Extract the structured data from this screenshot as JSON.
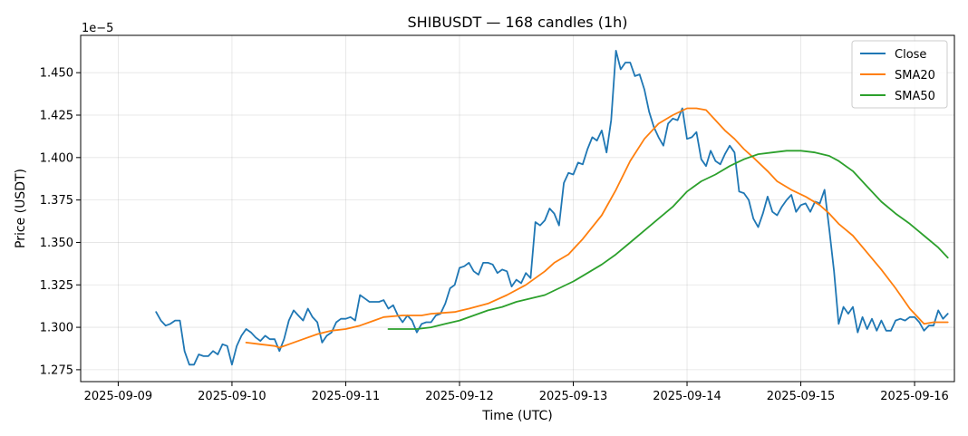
{
  "chart_data": {
    "type": "line",
    "title": "SHIBUSDT — 168 candles (1h)",
    "xlabel": "Time (UTC)",
    "ylabel": "Price (USDT)",
    "y_offset_label": "1e−5",
    "x_unit": "days since 2025-09-09 00:00 UTC",
    "xlim": [
      -0.33,
      7.35
    ],
    "ylim": [
      1.268,
      1.472
    ],
    "x_ticks": [
      {
        "x": 0,
        "label": "2025-09-09"
      },
      {
        "x": 1,
        "label": "2025-09-10"
      },
      {
        "x": 2,
        "label": "2025-09-11"
      },
      {
        "x": 3,
        "label": "2025-09-12"
      },
      {
        "x": 4,
        "label": "2025-09-13"
      },
      {
        "x": 5,
        "label": "2025-09-14"
      },
      {
        "x": 6,
        "label": "2025-09-15"
      },
      {
        "x": 7,
        "label": "2025-09-16"
      }
    ],
    "y_ticks": [
      {
        "y": 1.275,
        "label": "1.275"
      },
      {
        "y": 1.3,
        "label": "1.300"
      },
      {
        "y": 1.325,
        "label": "1.325"
      },
      {
        "y": 1.35,
        "label": "1.350"
      },
      {
        "y": 1.375,
        "label": "1.375"
      },
      {
        "y": 1.4,
        "label": "1.400"
      },
      {
        "y": 1.425,
        "label": "1.425"
      },
      {
        "y": 1.45,
        "label": "1.450"
      }
    ],
    "grid": true,
    "legend_position": "top-right",
    "series": [
      {
        "name": "Close",
        "color": "#1f77b4",
        "points": [
          [
            0.333,
            1.309
          ],
          [
            0.375,
            1.304
          ],
          [
            0.417,
            1.301
          ],
          [
            0.458,
            1.302
          ],
          [
            0.5,
            1.304
          ],
          [
            0.542,
            1.304
          ],
          [
            0.583,
            1.286
          ],
          [
            0.625,
            1.278
          ],
          [
            0.667,
            1.278
          ],
          [
            0.708,
            1.284
          ],
          [
            0.75,
            1.283
          ],
          [
            0.792,
            1.283
          ],
          [
            0.833,
            1.286
          ],
          [
            0.875,
            1.284
          ],
          [
            0.917,
            1.29
          ],
          [
            0.958,
            1.289
          ],
          [
            1.0,
            1.278
          ],
          [
            1.042,
            1.289
          ],
          [
            1.083,
            1.295
          ],
          [
            1.125,
            1.299
          ],
          [
            1.167,
            1.297
          ],
          [
            1.208,
            1.294
          ],
          [
            1.25,
            1.292
          ],
          [
            1.292,
            1.295
          ],
          [
            1.333,
            1.293
          ],
          [
            1.375,
            1.293
          ],
          [
            1.417,
            1.286
          ],
          [
            1.458,
            1.293
          ],
          [
            1.5,
            1.304
          ],
          [
            1.542,
            1.31
          ],
          [
            1.583,
            1.307
          ],
          [
            1.625,
            1.304
          ],
          [
            1.667,
            1.311
          ],
          [
            1.708,
            1.306
          ],
          [
            1.75,
            1.303
          ],
          [
            1.792,
            1.291
          ],
          [
            1.833,
            1.295
          ],
          [
            1.875,
            1.297
          ],
          [
            1.917,
            1.303
          ],
          [
            1.958,
            1.305
          ],
          [
            2.0,
            1.305
          ],
          [
            2.042,
            1.306
          ],
          [
            2.083,
            1.304
          ],
          [
            2.125,
            1.319
          ],
          [
            2.167,
            1.317
          ],
          [
            2.208,
            1.315
          ],
          [
            2.25,
            1.315
          ],
          [
            2.292,
            1.315
          ],
          [
            2.333,
            1.316
          ],
          [
            2.375,
            1.311
          ],
          [
            2.417,
            1.313
          ],
          [
            2.458,
            1.307
          ],
          [
            2.5,
            1.303
          ],
          [
            2.542,
            1.307
          ],
          [
            2.583,
            1.304
          ],
          [
            2.625,
            1.297
          ],
          [
            2.667,
            1.302
          ],
          [
            2.708,
            1.303
          ],
          [
            2.75,
            1.303
          ],
          [
            2.792,
            1.307
          ],
          [
            2.833,
            1.308
          ],
          [
            2.875,
            1.314
          ],
          [
            2.917,
            1.323
          ],
          [
            2.958,
            1.325
          ],
          [
            3.0,
            1.335
          ],
          [
            3.042,
            1.336
          ],
          [
            3.083,
            1.338
          ],
          [
            3.125,
            1.333
          ],
          [
            3.167,
            1.331
          ],
          [
            3.208,
            1.338
          ],
          [
            3.25,
            1.338
          ],
          [
            3.292,
            1.337
          ],
          [
            3.333,
            1.332
          ],
          [
            3.375,
            1.334
          ],
          [
            3.417,
            1.333
          ],
          [
            3.458,
            1.324
          ],
          [
            3.5,
            1.328
          ],
          [
            3.542,
            1.326
          ],
          [
            3.583,
            1.332
          ],
          [
            3.625,
            1.329
          ],
          [
            3.667,
            1.362
          ],
          [
            3.708,
            1.36
          ],
          [
            3.75,
            1.363
          ],
          [
            3.792,
            1.37
          ],
          [
            3.833,
            1.367
          ],
          [
            3.875,
            1.36
          ],
          [
            3.917,
            1.385
          ],
          [
            3.958,
            1.391
          ],
          [
            4.0,
            1.39
          ],
          [
            4.042,
            1.397
          ],
          [
            4.083,
            1.396
          ],
          [
            4.125,
            1.405
          ],
          [
            4.167,
            1.412
          ],
          [
            4.208,
            1.41
          ],
          [
            4.25,
            1.416
          ],
          [
            4.292,
            1.403
          ],
          [
            4.333,
            1.422
          ],
          [
            4.375,
            1.463
          ],
          [
            4.417,
            1.452
          ],
          [
            4.458,
            1.456
          ],
          [
            4.5,
            1.456
          ],
          [
            4.542,
            1.448
          ],
          [
            4.583,
            1.449
          ],
          [
            4.625,
            1.44
          ],
          [
            4.667,
            1.427
          ],
          [
            4.708,
            1.418
          ],
          [
            4.75,
            1.412
          ],
          [
            4.792,
            1.407
          ],
          [
            4.833,
            1.42
          ],
          [
            4.875,
            1.423
          ],
          [
            4.917,
            1.422
          ],
          [
            4.958,
            1.429
          ],
          [
            5.0,
            1.411
          ],
          [
            5.042,
            1.412
          ],
          [
            5.083,
            1.415
          ],
          [
            5.125,
            1.399
          ],
          [
            5.167,
            1.395
          ],
          [
            5.208,
            1.404
          ],
          [
            5.25,
            1.398
          ],
          [
            5.292,
            1.396
          ],
          [
            5.333,
            1.402
          ],
          [
            5.375,
            1.407
          ],
          [
            5.417,
            1.403
          ],
          [
            5.458,
            1.38
          ],
          [
            5.5,
            1.379
          ],
          [
            5.542,
            1.375
          ],
          [
            5.583,
            1.364
          ],
          [
            5.625,
            1.359
          ],
          [
            5.667,
            1.367
          ],
          [
            5.708,
            1.377
          ],
          [
            5.75,
            1.368
          ],
          [
            5.792,
            1.366
          ],
          [
            5.833,
            1.371
          ],
          [
            5.875,
            1.375
          ],
          [
            5.917,
            1.378
          ],
          [
            5.958,
            1.368
          ],
          [
            6.0,
            1.372
          ],
          [
            6.042,
            1.373
          ],
          [
            6.083,
            1.368
          ],
          [
            6.125,
            1.374
          ],
          [
            6.167,
            1.373
          ],
          [
            6.208,
            1.381
          ],
          [
            6.25,
            1.358
          ],
          [
            6.292,
            1.333
          ],
          [
            6.333,
            1.302
          ],
          [
            6.375,
            1.312
          ],
          [
            6.417,
            1.308
          ],
          [
            6.458,
            1.312
          ],
          [
            6.5,
            1.297
          ],
          [
            6.542,
            1.306
          ],
          [
            6.583,
            1.299
          ],
          [
            6.625,
            1.305
          ],
          [
            6.667,
            1.298
          ],
          [
            6.708,
            1.304
          ],
          [
            6.75,
            1.298
          ],
          [
            6.792,
            1.298
          ],
          [
            6.833,
            1.304
          ],
          [
            6.875,
            1.305
          ],
          [
            6.917,
            1.304
          ],
          [
            6.958,
            1.306
          ],
          [
            7.0,
            1.306
          ],
          [
            7.042,
            1.303
          ],
          [
            7.083,
            1.298
          ],
          [
            7.125,
            1.301
          ],
          [
            7.167,
            1.301
          ],
          [
            7.208,
            1.31
          ],
          [
            7.25,
            1.305
          ],
          [
            7.292,
            1.308
          ]
        ]
      },
      {
        "name": "SMA20",
        "color": "#ff7f0e",
        "points": [
          [
            1.125,
            1.291
          ],
          [
            1.25,
            1.29
          ],
          [
            1.375,
            1.289
          ],
          [
            1.417,
            1.288
          ],
          [
            1.5,
            1.29
          ],
          [
            1.625,
            1.293
          ],
          [
            1.75,
            1.296
          ],
          [
            1.875,
            1.298
          ],
          [
            2.0,
            1.299
          ],
          [
            2.125,
            1.301
          ],
          [
            2.25,
            1.304
          ],
          [
            2.333,
            1.306
          ],
          [
            2.5,
            1.307
          ],
          [
            2.667,
            1.307
          ],
          [
            2.75,
            1.308
          ],
          [
            2.958,
            1.309
          ],
          [
            3.083,
            1.311
          ],
          [
            3.25,
            1.314
          ],
          [
            3.417,
            1.319
          ],
          [
            3.583,
            1.325
          ],
          [
            3.75,
            1.333
          ],
          [
            3.833,
            1.338
          ],
          [
            3.958,
            1.343
          ],
          [
            4.083,
            1.352
          ],
          [
            4.25,
            1.366
          ],
          [
            4.375,
            1.381
          ],
          [
            4.5,
            1.398
          ],
          [
            4.625,
            1.411
          ],
          [
            4.75,
            1.42
          ],
          [
            4.875,
            1.425
          ],
          [
            5.0,
            1.429
          ],
          [
            5.083,
            1.429
          ],
          [
            5.167,
            1.428
          ],
          [
            5.25,
            1.422
          ],
          [
            5.333,
            1.416
          ],
          [
            5.417,
            1.411
          ],
          [
            5.5,
            1.405
          ],
          [
            5.583,
            1.4
          ],
          [
            5.708,
            1.392
          ],
          [
            5.792,
            1.386
          ],
          [
            5.917,
            1.381
          ],
          [
            6.042,
            1.377
          ],
          [
            6.167,
            1.372
          ],
          [
            6.25,
            1.367
          ],
          [
            6.333,
            1.361
          ],
          [
            6.458,
            1.354
          ],
          [
            6.583,
            1.344
          ],
          [
            6.708,
            1.334
          ],
          [
            6.833,
            1.323
          ],
          [
            6.958,
            1.311
          ],
          [
            7.083,
            1.302
          ],
          [
            7.167,
            1.303
          ],
          [
            7.292,
            1.303
          ]
        ]
      },
      {
        "name": "SMA50",
        "color": "#2ca02c",
        "points": [
          [
            2.375,
            1.299
          ],
          [
            2.5,
            1.299
          ],
          [
            2.625,
            1.299
          ],
          [
            2.75,
            1.3
          ],
          [
            2.875,
            1.302
          ],
          [
            3.0,
            1.304
          ],
          [
            3.125,
            1.307
          ],
          [
            3.25,
            1.31
          ],
          [
            3.375,
            1.312
          ],
          [
            3.5,
            1.315
          ],
          [
            3.625,
            1.317
          ],
          [
            3.75,
            1.319
          ],
          [
            3.875,
            1.323
          ],
          [
            4.0,
            1.327
          ],
          [
            4.125,
            1.332
          ],
          [
            4.25,
            1.337
          ],
          [
            4.375,
            1.343
          ],
          [
            4.5,
            1.35
          ],
          [
            4.625,
            1.357
          ],
          [
            4.75,
            1.364
          ],
          [
            4.875,
            1.371
          ],
          [
            5.0,
            1.38
          ],
          [
            5.125,
            1.386
          ],
          [
            5.25,
            1.39
          ],
          [
            5.375,
            1.395
          ],
          [
            5.5,
            1.399
          ],
          [
            5.625,
            1.402
          ],
          [
            5.75,
            1.403
          ],
          [
            5.875,
            1.404
          ],
          [
            6.0,
            1.404
          ],
          [
            6.125,
            1.403
          ],
          [
            6.25,
            1.401
          ],
          [
            6.333,
            1.398
          ],
          [
            6.458,
            1.392
          ],
          [
            6.583,
            1.383
          ],
          [
            6.708,
            1.374
          ],
          [
            6.833,
            1.367
          ],
          [
            6.958,
            1.361
          ],
          [
            7.083,
            1.354
          ],
          [
            7.208,
            1.347
          ],
          [
            7.292,
            1.341
          ]
        ]
      }
    ]
  }
}
